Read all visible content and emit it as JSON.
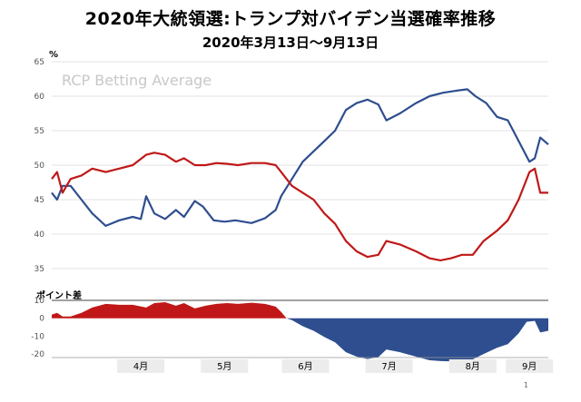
{
  "title": "2020年大統領選:トランプ対バイデン当選確率推移",
  "subtitle": "2020年3月13日～9月13日",
  "watermark": "RCP Betting Average",
  "page_number": "1",
  "chart_data": [
    {
      "type": "line",
      "title": "2020年大統領選:トランプ対バイデン当選確率推移",
      "ylabel": "%",
      "ylim": [
        35,
        65
      ],
      "yticks": [
        35,
        40,
        45,
        50,
        55,
        60,
        65
      ],
      "grid": true,
      "x_categories": [
        "4月",
        "5月",
        "6月",
        "7月",
        "8月",
        "9月"
      ],
      "x_range": [
        "2020-03-13",
        "2020-09-13"
      ],
      "series": [
        {
          "color": "#2e4e8f",
          "points": [
            [
              "2020-03-13",
              46
            ],
            [
              "2020-03-15",
              45
            ],
            [
              "2020-03-17",
              47
            ],
            [
              "2020-03-20",
              47
            ],
            [
              "2020-03-24",
              45
            ],
            [
              "2020-03-28",
              43
            ],
            [
              "2020-04-02",
              41.2
            ],
            [
              "2020-04-07",
              42
            ],
            [
              "2020-04-12",
              42.5
            ],
            [
              "2020-04-15",
              42.2
            ],
            [
              "2020-04-17",
              45.5
            ],
            [
              "2020-04-20",
              43
            ],
            [
              "2020-04-24",
              42.2
            ],
            [
              "2020-04-28",
              43.5
            ],
            [
              "2020-05-01",
              42.5
            ],
            [
              "2020-05-05",
              44.8
            ],
            [
              "2020-05-08",
              44
            ],
            [
              "2020-05-12",
              42
            ],
            [
              "2020-05-16",
              41.8
            ],
            [
              "2020-05-20",
              42
            ],
            [
              "2020-05-26",
              41.6
            ],
            [
              "2020-05-31",
              42.3
            ],
            [
              "2020-06-04",
              43.5
            ],
            [
              "2020-06-06",
              45.5
            ],
            [
              "2020-06-10",
              48
            ],
            [
              "2020-06-14",
              50.5
            ],
            [
              "2020-06-18",
              52
            ],
            [
              "2020-06-22",
              53.5
            ],
            [
              "2020-06-26",
              55
            ],
            [
              "2020-06-30",
              58
            ],
            [
              "2020-07-04",
              59
            ],
            [
              "2020-07-08",
              59.5
            ],
            [
              "2020-07-12",
              58.8
            ],
            [
              "2020-07-15",
              56.5
            ],
            [
              "2020-07-20",
              57.5
            ],
            [
              "2020-07-26",
              59
            ],
            [
              "2020-07-31",
              60
            ],
            [
              "2020-08-05",
              60.5
            ],
            [
              "2020-08-10",
              60.8
            ],
            [
              "2020-08-14",
              61
            ],
            [
              "2020-08-17",
              60
            ],
            [
              "2020-08-21",
              59
            ],
            [
              "2020-08-25",
              57
            ],
            [
              "2020-08-29",
              56.5
            ],
            [
              "2020-09-02",
              53.5
            ],
            [
              "2020-09-06",
              50.5
            ],
            [
              "2020-09-08",
              51
            ],
            [
              "2020-09-10",
              54
            ],
            [
              "2020-09-13",
              53
            ]
          ]
        },
        {
          "color": "#c01818",
          "points": [
            [
              "2020-03-13",
              48
            ],
            [
              "2020-03-15",
              49
            ],
            [
              "2020-03-17",
              46
            ],
            [
              "2020-03-20",
              48
            ],
            [
              "2020-03-24",
              48.5
            ],
            [
              "2020-03-28",
              49.5
            ],
            [
              "2020-04-02",
              49
            ],
            [
              "2020-04-07",
              49.5
            ],
            [
              "2020-04-12",
              50
            ],
            [
              "2020-04-17",
              51.5
            ],
            [
              "2020-04-20",
              51.8
            ],
            [
              "2020-04-24",
              51.5
            ],
            [
              "2020-04-28",
              50.5
            ],
            [
              "2020-05-01",
              51
            ],
            [
              "2020-05-05",
              50
            ],
            [
              "2020-05-09",
              50
            ],
            [
              "2020-05-13",
              50.3
            ],
            [
              "2020-05-17",
              50.2
            ],
            [
              "2020-05-21",
              50
            ],
            [
              "2020-05-26",
              50.3
            ],
            [
              "2020-05-31",
              50.3
            ],
            [
              "2020-06-04",
              50
            ],
            [
              "2020-06-06",
              49
            ],
            [
              "2020-06-10",
              47
            ],
            [
              "2020-06-14",
              46
            ],
            [
              "2020-06-18",
              45
            ],
            [
              "2020-06-22",
              43
            ],
            [
              "2020-06-26",
              41.5
            ],
            [
              "2020-06-30",
              39
            ],
            [
              "2020-07-04",
              37.5
            ],
            [
              "2020-07-08",
              36.7
            ],
            [
              "2020-07-12",
              37
            ],
            [
              "2020-07-15",
              39
            ],
            [
              "2020-07-20",
              38.5
            ],
            [
              "2020-07-26",
              37.5
            ],
            [
              "2020-07-31",
              36.5
            ],
            [
              "2020-08-04",
              36.2
            ],
            [
              "2020-08-08",
              36.5
            ],
            [
              "2020-08-12",
              37
            ],
            [
              "2020-08-16",
              37
            ],
            [
              "2020-08-20",
              39
            ],
            [
              "2020-08-25",
              40.5
            ],
            [
              "2020-08-29",
              42
            ],
            [
              "2020-09-02",
              45
            ],
            [
              "2020-09-06",
              49
            ],
            [
              "2020-09-08",
              49.5
            ],
            [
              "2020-09-10",
              46
            ],
            [
              "2020-09-13",
              46
            ]
          ]
        }
      ]
    },
    {
      "type": "area",
      "title": "ポイント差",
      "ylim": [
        -22,
        10
      ],
      "yticks": [
        10,
        0,
        -10,
        -20
      ],
      "positive_color": "#c01818",
      "negative_color": "#2e4e8f",
      "points": [
        [
          "2020-03-13",
          2
        ],
        [
          "2020-03-15",
          3
        ],
        [
          "2020-03-17",
          1
        ],
        [
          "2020-03-20",
          1
        ],
        [
          "2020-03-24",
          3
        ],
        [
          "2020-03-28",
          6
        ],
        [
          "2020-04-02",
          8
        ],
        [
          "2020-04-07",
          7.5
        ],
        [
          "2020-04-12",
          7.5
        ],
        [
          "2020-04-17",
          6
        ],
        [
          "2020-04-20",
          8.5
        ],
        [
          "2020-04-24",
          9
        ],
        [
          "2020-04-28",
          7
        ],
        [
          "2020-05-01",
          8.5
        ],
        [
          "2020-05-05",
          5.5
        ],
        [
          "2020-05-09",
          7
        ],
        [
          "2020-05-13",
          8
        ],
        [
          "2020-05-17",
          8.5
        ],
        [
          "2020-05-21",
          8
        ],
        [
          "2020-05-26",
          8.7
        ],
        [
          "2020-05-31",
          8
        ],
        [
          "2020-06-04",
          6.5
        ],
        [
          "2020-06-06",
          3.5
        ],
        [
          "2020-06-08",
          0
        ],
        [
          "2020-06-10",
          -1
        ],
        [
          "2020-06-14",
          -4.5
        ],
        [
          "2020-06-18",
          -7
        ],
        [
          "2020-06-22",
          -10.5
        ],
        [
          "2020-06-26",
          -13.5
        ],
        [
          "2020-06-30",
          -19
        ],
        [
          "2020-07-04",
          -21.5
        ],
        [
          "2020-07-08",
          -22.8
        ],
        [
          "2020-07-12",
          -21.8
        ],
        [
          "2020-07-15",
          -17.5
        ],
        [
          "2020-07-20",
          -19
        ],
        [
          "2020-07-26",
          -21.5
        ],
        [
          "2020-07-31",
          -23.5
        ],
        [
          "2020-08-04",
          -24
        ],
        [
          "2020-08-08",
          -24.2
        ],
        [
          "2020-08-12",
          -23.8
        ],
        [
          "2020-08-16",
          -23
        ],
        [
          "2020-08-20",
          -20
        ],
        [
          "2020-08-25",
          -16.5
        ],
        [
          "2020-08-29",
          -14.5
        ],
        [
          "2020-09-02",
          -8.5
        ],
        [
          "2020-09-05",
          -2
        ],
        [
          "2020-09-08",
          -1.5
        ],
        [
          "2020-09-10",
          -8
        ],
        [
          "2020-09-13",
          -7
        ]
      ]
    }
  ]
}
